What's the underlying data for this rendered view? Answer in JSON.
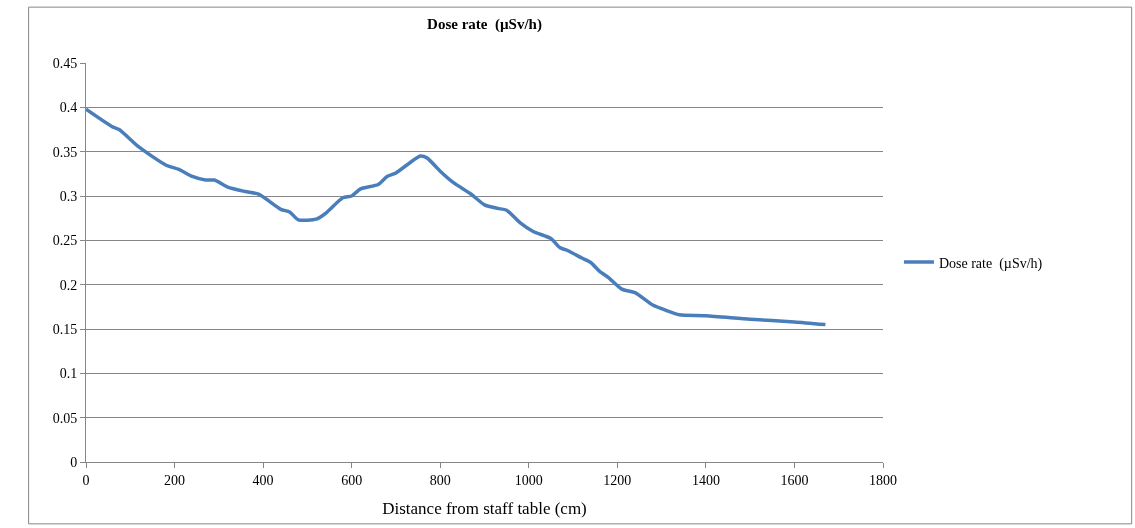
{
  "chart_data": {
    "type": "line",
    "title": "Dose rate  (µSv/h)",
    "xlabel": "Distance from staff table (cm)",
    "xlim": [
      0,
      1800
    ],
    "xticks": [
      0,
      200,
      400,
      600,
      800,
      1000,
      1200,
      1400,
      1600,
      1800
    ],
    "ylim": [
      0,
      0.45
    ],
    "yticks": [
      0,
      0.05,
      0.1,
      0.15,
      0.2,
      0.25,
      0.3,
      0.35,
      0.4,
      0.45
    ],
    "grid": "y",
    "legend": "right",
    "marker": "none",
    "line_style": "solid",
    "series": [
      {
        "name": "Dose rate  (µSv/h)",
        "color": "#4a7ebb",
        "x": [
          0,
          60,
          75,
          120,
          180,
          210,
          240,
          270,
          290,
          320,
          360,
          390,
          440,
          460,
          480,
          520,
          540,
          580,
          600,
          620,
          660,
          680,
          700,
          730,
          755,
          770,
          800,
          830,
          870,
          900,
          930,
          950,
          980,
          1010,
          1050,
          1070,
          1090,
          1120,
          1140,
          1160,
          1180,
          1210,
          1240,
          1280,
          1310,
          1340,
          1400,
          1500,
          1600,
          1670
        ],
        "values": [
          0.398,
          0.378,
          0.375,
          0.355,
          0.335,
          0.33,
          0.322,
          0.318,
          0.318,
          0.31,
          0.305,
          0.302,
          0.285,
          0.282,
          0.273,
          0.274,
          0.28,
          0.298,
          0.3,
          0.308,
          0.313,
          0.322,
          0.326,
          0.337,
          0.345,
          0.343,
          0.328,
          0.315,
          0.302,
          0.29,
          0.286,
          0.284,
          0.27,
          0.26,
          0.252,
          0.242,
          0.238,
          0.23,
          0.225,
          0.215,
          0.208,
          0.195,
          0.191,
          0.177,
          0.171,
          0.166,
          0.165,
          0.161,
          0.158,
          0.155
        ]
      }
    ]
  }
}
